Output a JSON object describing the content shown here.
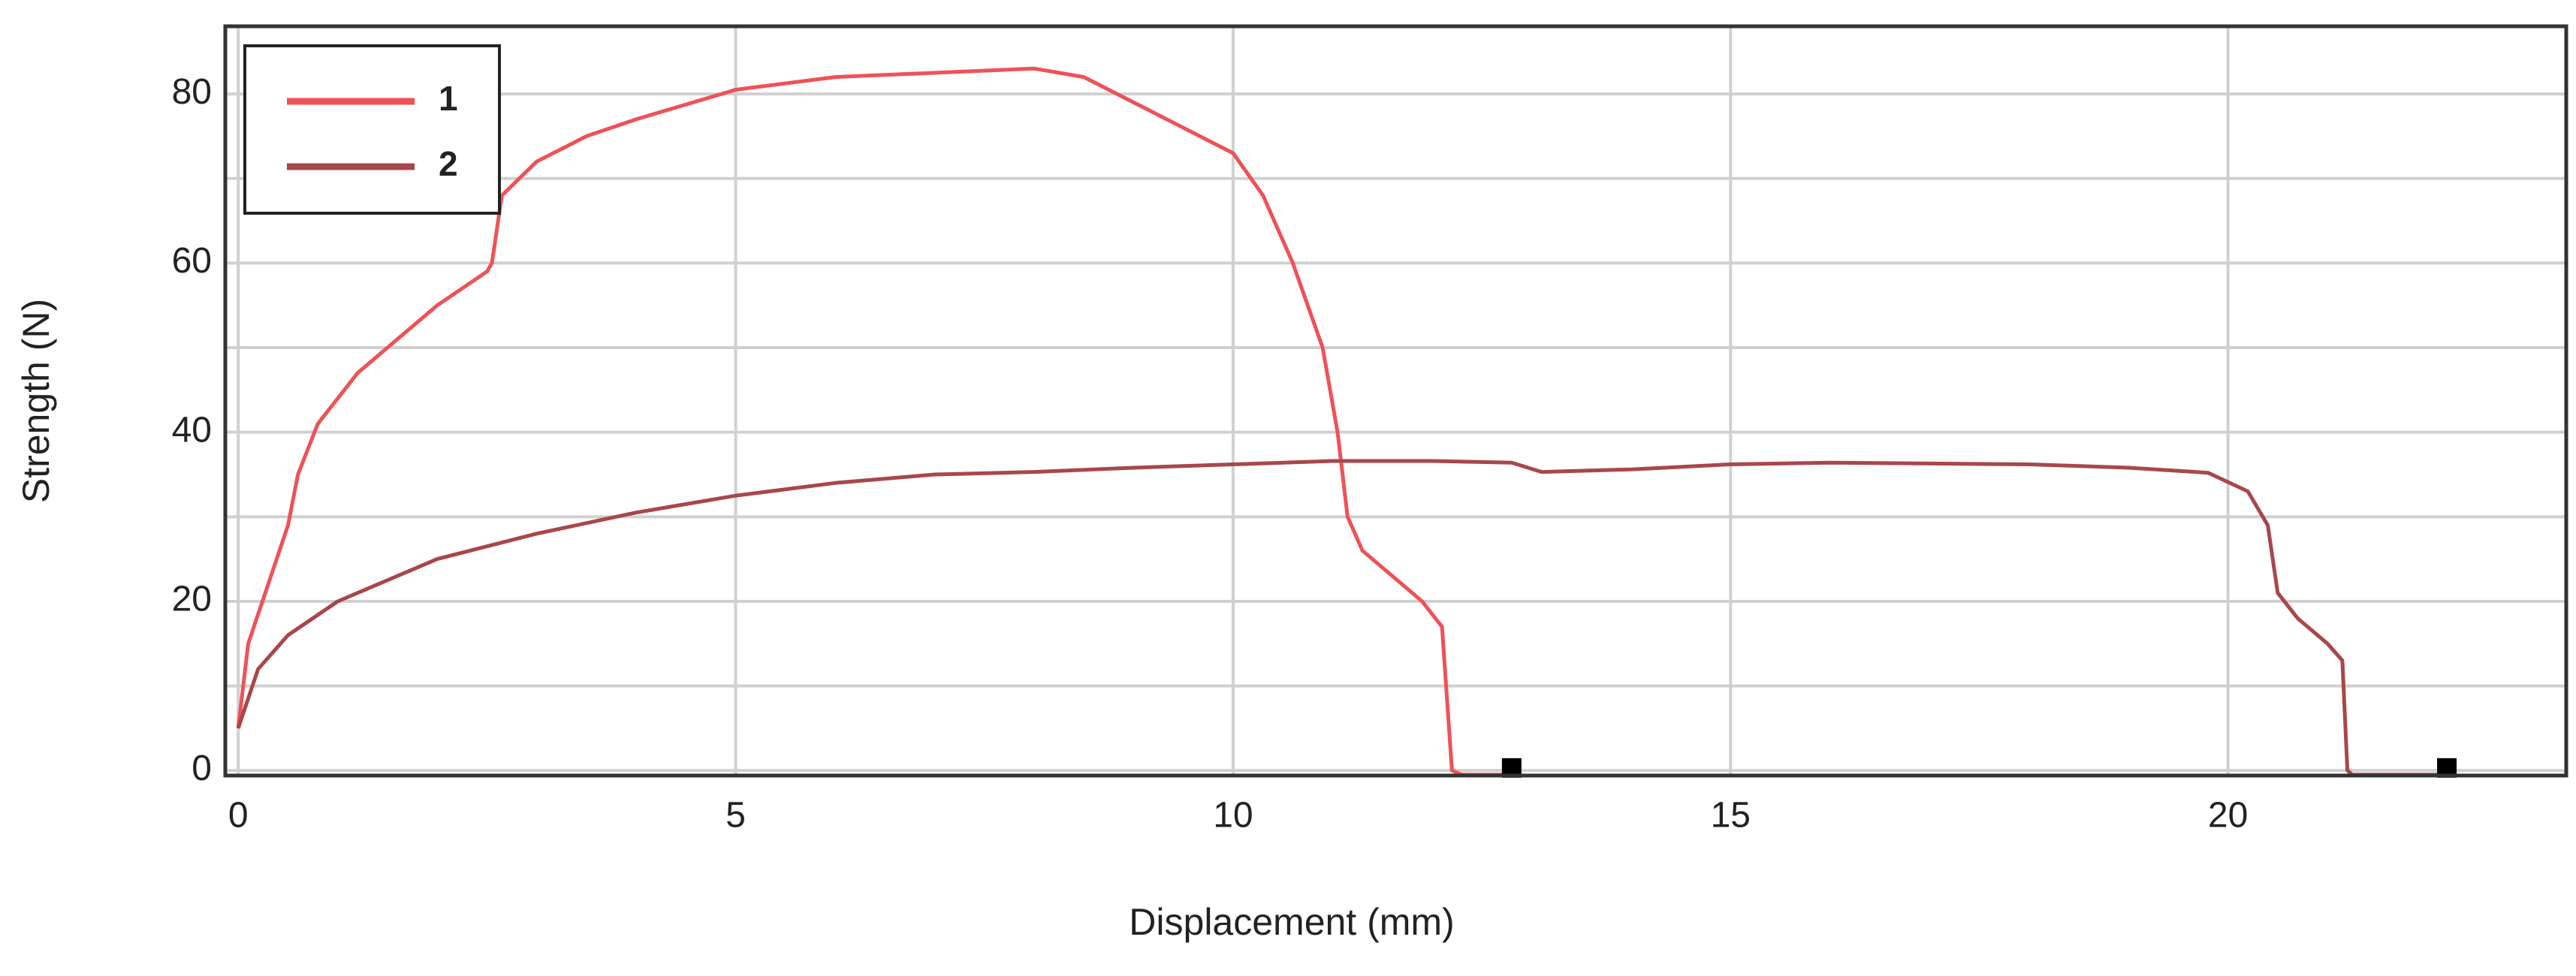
{
  "chart_data": {
    "type": "line",
    "x_label": "Displacement (mm)",
    "y_label": "Strength (N)",
    "xlim": [
      -0.13,
      23.4
    ],
    "ylim": [
      -0.6,
      88
    ],
    "xticks": [
      0,
      5,
      10,
      15,
      20
    ],
    "yticks": [
      0,
      20,
      40,
      60,
      80
    ],
    "y_minor_grid": [
      10,
      30,
      50,
      70
    ],
    "grid": true,
    "legend": "upper left",
    "end_marker": true,
    "series": [
      {
        "name": "1",
        "color": "#ee5257",
        "x": [
          0,
          0.1,
          0.3,
          0.5,
          0.6,
          0.8,
          1.2,
          1.5,
          2,
          2.5,
          2.55,
          2.65,
          3,
          3.5,
          4,
          5,
          6,
          7,
          8,
          8.5,
          9,
          9.5,
          10,
          10.3,
          10.6,
          10.9,
          11.05,
          11.15,
          11.3,
          11.6,
          11.9,
          12.1,
          12.2,
          12.3,
          12.8
        ],
        "y": [
          5,
          15,
          22,
          29,
          35,
          41,
          47,
          50,
          55,
          59,
          60,
          68,
          72,
          75,
          77,
          80.5,
          82,
          82.5,
          83,
          82,
          79,
          76,
          73,
          68,
          60,
          50,
          40,
          30,
          26,
          23,
          20,
          17,
          0,
          -0.5,
          -0.5
        ]
      },
      {
        "name": "2",
        "color": "#a8474a",
        "x": [
          0,
          0.2,
          0.5,
          1,
          2,
          3,
          4,
          5,
          6,
          7,
          8,
          9,
          10,
          11,
          12,
          12.8,
          13.1,
          14,
          15,
          16,
          17,
          18,
          19,
          19.8,
          20.2,
          20.4,
          20.5,
          20.7,
          21,
          21.15,
          21.2,
          21.25,
          22.2
        ],
        "y": [
          5,
          12,
          16,
          20,
          25,
          28,
          30.5,
          32.5,
          34,
          35,
          35.3,
          35.8,
          36.2,
          36.6,
          36.6,
          36.4,
          35.3,
          35.6,
          36.2,
          36.4,
          36.3,
          36.2,
          35.8,
          35.2,
          33,
          29,
          21,
          18,
          15,
          13,
          0,
          -0.5,
          -0.5
        ]
      }
    ]
  }
}
